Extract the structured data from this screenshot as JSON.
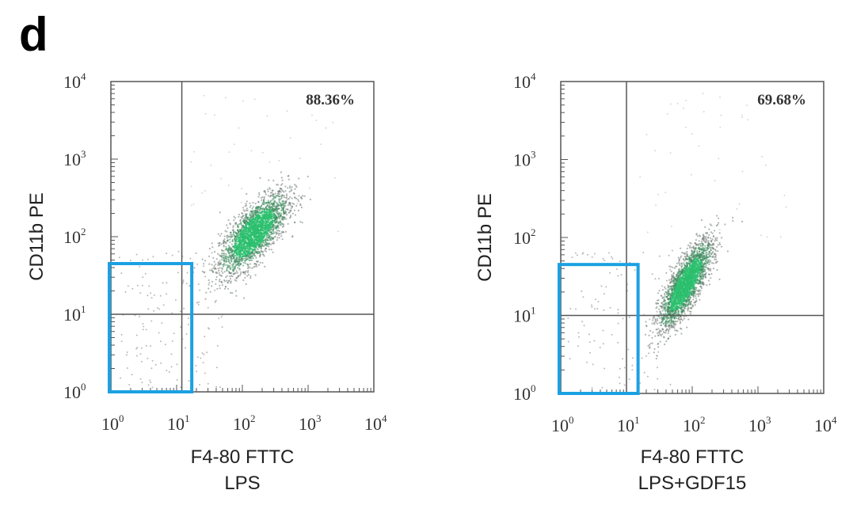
{
  "figure": {
    "panel_letter": "d"
  },
  "chart_data": [
    {
      "type": "scatter",
      "scale": "log",
      "xlabel": "F4-80 FTTC",
      "ylabel": "CD11b PE",
      "subtitle": "LPS",
      "xlim": [
        1,
        10000
      ],
      "ylim": [
        1,
        10000
      ],
      "x_ticks": [
        {
          "base": "10",
          "exp": "0"
        },
        {
          "base": "10",
          "exp": "1"
        },
        {
          "base": "10",
          "exp": "2"
        },
        {
          "base": "10",
          "exp": "3"
        },
        {
          "base": "10",
          "exp": "4"
        }
      ],
      "y_ticks": [
        {
          "base": "10",
          "exp": "0"
        },
        {
          "base": "10",
          "exp": "1"
        },
        {
          "base": "10",
          "exp": "2"
        },
        {
          "base": "10",
          "exp": "3"
        },
        {
          "base": "10",
          "exp": "4"
        }
      ],
      "quadrant_gate": {
        "x": 12,
        "y": 10
      },
      "annotation": "88.36%",
      "highlight_gate": {
        "x": [
          1,
          17
        ],
        "y": [
          1,
          45
        ],
        "color": "#1ba1e2"
      },
      "population_center": {
        "x": 150,
        "y": 110
      },
      "population_color": "#2bbf6e"
    },
    {
      "type": "scatter",
      "scale": "log",
      "xlabel": "F4-80 FTTC",
      "ylabel": "CD11b PE",
      "subtitle": "LPS+GDF15",
      "xlim": [
        1,
        10000
      ],
      "ylim": [
        1,
        10000
      ],
      "x_ticks": [
        {
          "base": "10",
          "exp": "0"
        },
        {
          "base": "10",
          "exp": "1"
        },
        {
          "base": "10",
          "exp": "2"
        },
        {
          "base": "10",
          "exp": "3"
        },
        {
          "base": "10",
          "exp": "4"
        }
      ],
      "y_ticks": [
        {
          "base": "10",
          "exp": "0"
        },
        {
          "base": "10",
          "exp": "1"
        },
        {
          "base": "10",
          "exp": "2"
        },
        {
          "base": "10",
          "exp": "3"
        },
        {
          "base": "10",
          "exp": "4"
        }
      ],
      "quadrant_gate": {
        "x": 10,
        "y": 10
      },
      "annotation": "69.68%",
      "highlight_gate": {
        "x": [
          1,
          15
        ],
        "y": [
          1,
          45
        ],
        "color": "#1ba1e2"
      },
      "population_center": {
        "x": 80,
        "y": 25
      },
      "population_color": "#2bbf6e"
    }
  ]
}
